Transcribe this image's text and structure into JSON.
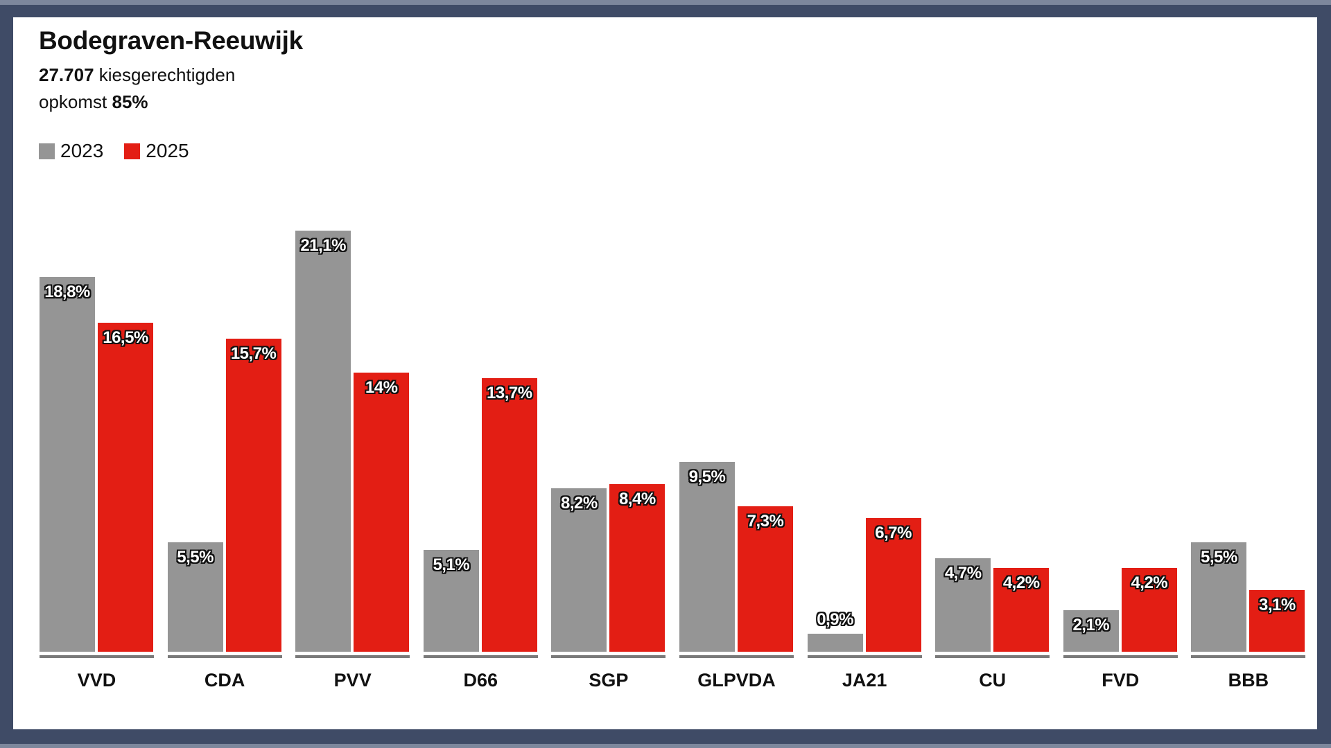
{
  "header": {
    "title": "Bodegraven-Reeuwijk",
    "eligible_count": "27.707",
    "eligible_label": "kiesgerechtigden",
    "turnout_label": "opkomst",
    "turnout_value": "85%"
  },
  "legend": [
    {
      "label": "2023",
      "color": "#959595"
    },
    {
      "label": "2025",
      "color": "#e31e14"
    }
  ],
  "chart_data": {
    "type": "bar",
    "title": "Bodegraven-Reeuwijk",
    "subtitle": "27.707 kiesgerechtigden, opkomst 85%",
    "xlabel": "",
    "ylabel": "",
    "categories": [
      "VVD",
      "CDA",
      "PVV",
      "D66",
      "SGP",
      "GLPVDA",
      "JA21",
      "CU",
      "FVD",
      "BBB"
    ],
    "series": [
      {
        "name": "2023",
        "color": "#959595",
        "values": [
          18.8,
          5.5,
          21.1,
          5.1,
          8.2,
          9.5,
          0.9,
          4.7,
          2.1,
          5.5
        ]
      },
      {
        "name": "2025",
        "color": "#e31e14",
        "values": [
          16.5,
          15.7,
          14.0,
          13.7,
          8.4,
          7.3,
          6.7,
          4.2,
          4.2,
          3.1
        ]
      }
    ],
    "labels": {
      "2023": [
        "18,8%",
        "5,5%",
        "21,1%",
        "5,1%",
        "8,2%",
        "9,5%",
        "0,9%",
        "4,7%",
        "2,1%",
        "5,5%"
      ],
      "2025": [
        "16,5%",
        "15,7%",
        "14%",
        "13,7%",
        "8,4%",
        "7,3%",
        "6,7%",
        "4,2%",
        "4,2%",
        "3,1%"
      ]
    },
    "ylim": [
      0,
      22
    ],
    "grid": false,
    "legend_position": "top-left"
  }
}
